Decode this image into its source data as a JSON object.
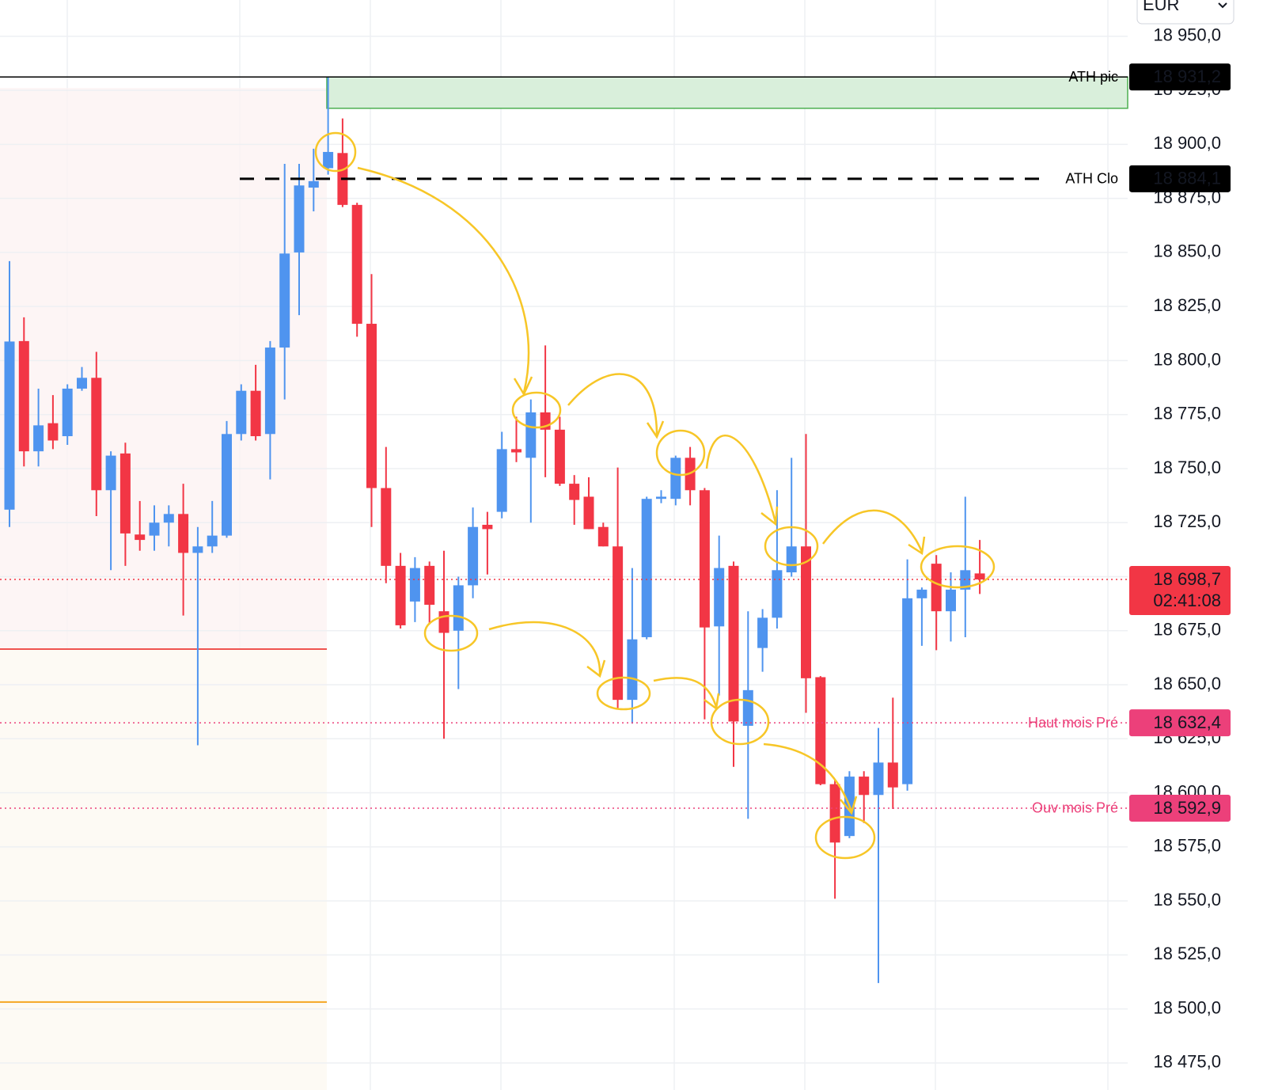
{
  "toolbar": {
    "currency": "EUR"
  },
  "chart_data": {
    "type": "candlestick",
    "up_color": "#4f94ef",
    "down_color": "#f23645",
    "open": [
      18731,
      18809,
      18758,
      18771,
      18765,
      18787,
      18792,
      18740,
      18757,
      18719.5,
      18719,
      18725,
      18729,
      18711,
      18714,
      18719,
      18766,
      18786,
      18766,
      18806,
      18850,
      18880,
      18889,
      18896,
      18872,
      18817,
      18741,
      18705,
      18688.5,
      18705,
      18684,
      18675,
      18696,
      18724,
      18730,
      18759,
      18755,
      18776,
      18768,
      18743,
      18737,
      18723,
      18714,
      18643,
      18672,
      18736,
      18736,
      18755,
      18740,
      18677,
      18705,
      18631,
      18667,
      18681,
      18702,
      18714,
      18653.5,
      18604,
      18580,
      18607.5,
      18599,
      18614,
      18604,
      18690,
      18706,
      18684,
      18694,
      18701.5
    ],
    "high": [
      18846,
      18820,
      18787,
      18784,
      18789,
      18797,
      18804,
      18758,
      18762,
      18735,
      18733,
      18733,
      18743,
      18723,
      18735,
      18772,
      18789,
      18798,
      18809,
      18891,
      18891,
      18898,
      18931.2,
      18912,
      18873,
      18840,
      18760,
      18711,
      18709,
      18707,
      18712,
      18700,
      18732,
      18730,
      18767,
      18774,
      18782,
      18807,
      18774,
      18747,
      18746,
      18725,
      18750.5,
      18704,
      18737,
      18740,
      18756,
      18760,
      18741,
      18719,
      18707,
      18684,
      18685,
      18740,
      18755,
      18766,
      18654,
      18606,
      18610,
      18610,
      18630,
      18644,
      18708,
      18695,
      18710,
      18702,
      18737,
      18717
    ],
    "low": [
      18723,
      18751,
      18751,
      18759,
      18761,
      18786,
      18728,
      18703,
      18705,
      18712,
      18712,
      18714,
      18682,
      18622,
      18711,
      18718,
      18763,
      18763,
      18745,
      18782,
      18821,
      18869,
      18886,
      18871,
      18811,
      18723,
      18697,
      18676,
      18679,
      18678,
      18625,
      18648,
      18690,
      18701,
      18727,
      18753,
      18725,
      18746,
      18742,
      18724,
      18722,
      18714,
      18639,
      18632,
      18671,
      18734,
      18733,
      18733,
      18634,
      18645,
      18612,
      18588,
      18656,
      18676,
      18700,
      18637,
      18603.5,
      18551,
      18579,
      18586,
      18512,
      18592.5,
      18601,
      18668,
      18666,
      18670,
      18672,
      18692
    ],
    "close": [
      18808.8,
      18758,
      18770,
      18763,
      18787,
      18792,
      18740,
      18756,
      18720,
      18717,
      18725,
      18729,
      18711,
      18714,
      18719,
      18766,
      18786,
      18765,
      18806,
      18849.5,
      18881,
      18883,
      18896.5,
      18872,
      18817,
      18741,
      18705,
      18677.5,
      18704,
      18687,
      18674,
      18696,
      18723,
      18722,
      18759,
      18757.5,
      18776,
      18768,
      18743,
      18735.5,
      18722,
      18714,
      18643,
      18671,
      18736,
      18737,
      18755,
      18740,
      18676.5,
      18704,
      18633,
      18647.5,
      18681,
      18703,
      18714,
      18653,
      18604,
      18577,
      18607.5,
      18599,
      18614,
      18602.5,
      18690,
      18694,
      18684,
      18694,
      18703,
      18698.7
    ],
    "ylim": [
      18462.5,
      18966.8
    ],
    "yticks": [
      {
        "value": 18950,
        "label": "18 950,0"
      },
      {
        "value": 18925,
        "label": "18 925,0"
      },
      {
        "value": 18900,
        "label": "18 900,0"
      },
      {
        "value": 18875,
        "label": "18 875,0"
      },
      {
        "value": 18850,
        "label": "18 850,0"
      },
      {
        "value": 18825,
        "label": "18 825,0"
      },
      {
        "value": 18800,
        "label": "18 800,0"
      },
      {
        "value": 18775,
        "label": "18 775,0"
      },
      {
        "value": 18750,
        "label": "18 750,0"
      },
      {
        "value": 18725,
        "label": "18 725,0"
      },
      {
        "value": 18700,
        "label": "18 700,0"
      },
      {
        "value": 18675,
        "label": "18 675,0"
      },
      {
        "value": 18650,
        "label": "18 650,0"
      },
      {
        "value": 18625,
        "label": "18 625,0"
      },
      {
        "value": 18600,
        "label": "18 600,0"
      },
      {
        "value": 18575,
        "label": "18 575,0"
      },
      {
        "value": 18550,
        "label": "18 550,0"
      },
      {
        "value": 18525,
        "label": "18 525,0"
      },
      {
        "value": 18500,
        "label": "18 500,0"
      },
      {
        "value": 18475,
        "label": "18 475,0"
      }
    ],
    "grid": true,
    "zone": {
      "top": 18931.2,
      "bottom": 18916.7,
      "color": "#d9efdb"
    },
    "range_lines": [
      {
        "value": 18666.5,
        "color": "#ef5350"
      },
      {
        "value": 18503.2,
        "color": "#f5a623"
      }
    ],
    "levels": [
      {
        "name": "ATH pic",
        "value": 18931.2,
        "label": "18 931,2",
        "color": "#000000",
        "style": "solid"
      },
      {
        "name": "ATH Clo",
        "value": 18884.1,
        "label": "18 884,1",
        "color": "#000000",
        "style": "dashed"
      },
      {
        "name": "Haut mois Pré",
        "value": 18632.4,
        "label": "18 632,4",
        "color": "#ec407a",
        "style": "dotted"
      },
      {
        "name": "Ouv mois Pré",
        "value": 18592.9,
        "label": "18 592,9",
        "color": "#ec407a",
        "style": "dotted"
      }
    ],
    "last_price": {
      "value": 18698.7,
      "label": "18 698,7",
      "countdown": "02:41:08",
      "color": "#f23645"
    }
  }
}
